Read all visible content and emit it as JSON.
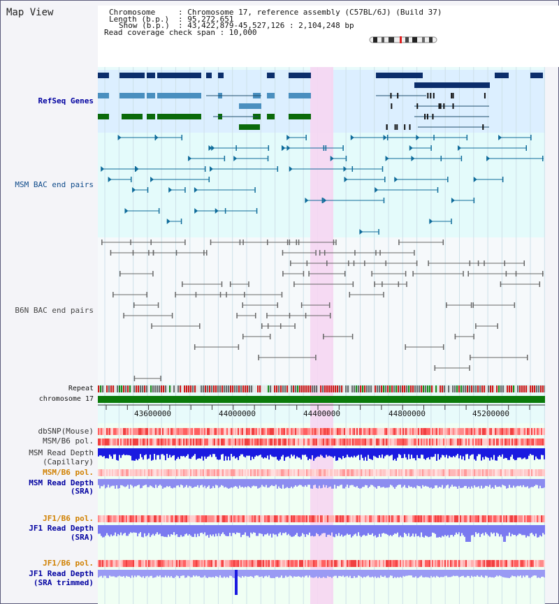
{
  "title": "Map View",
  "header": {
    "chromosome_key": "Chromosome",
    "chromosome_val": ": Chromosome 17, reference assembly (C57BL/6J) (Build 37)",
    "length_key": "Length (b.p.)",
    "length_val": ": 95,272,651",
    "show_key": "Show (b.p.)",
    "show_val": ": 43,422,879-45,527,126 : 2,104,248 bp",
    "coverage_line": "Read coverage check span : 10,000"
  },
  "tracks": {
    "refseq": "RefSeq Genes",
    "msm_bac": "MSM BAC end pairs",
    "b6n_bac": "B6N BAC end pairs",
    "repeat": "Repeat",
    "chromosome": "chromosome 17",
    "dbsnp": "dbSNP(Mouse)",
    "msm_b6_pol": "MSM/B6 pol.",
    "msm_read_depth_cap_1": "MSM Read Depth",
    "msm_read_depth_cap_2": "(Capillary)",
    "msm_b6_pol_sra": "MSM/B6 pol.",
    "msm_read_depth_sra_1": "MSM Read Depth",
    "msm_read_depth_sra_2": "(SRA)",
    "jf1_b6_pol": "JF1/B6 pol.",
    "jf1_read_depth_1": "JF1 Read Depth",
    "jf1_read_depth_2": "(SRA)",
    "jf1_b6_pol_trim": "JF1/B6 pol.",
    "jf1_read_depth_trim_1": "JF1 Read Depth",
    "jf1_read_depth_trim_2": "(SRA trimmed)"
  },
  "axis": {
    "ticks": [
      "43600000",
      "44000000",
      "44400000",
      "44800000",
      "45200000"
    ]
  },
  "colors": {
    "refseq_dark": "#0b2d6b",
    "refseq_light": "#4a8fbf",
    "refseq_green": "#0a6a0a",
    "msm_bac": "#0e6b9a",
    "b6n_bac": "#666666",
    "highlight": "#f6d6f2",
    "label_blue": "#0000a0",
    "label_orange": "#d08000"
  }
}
